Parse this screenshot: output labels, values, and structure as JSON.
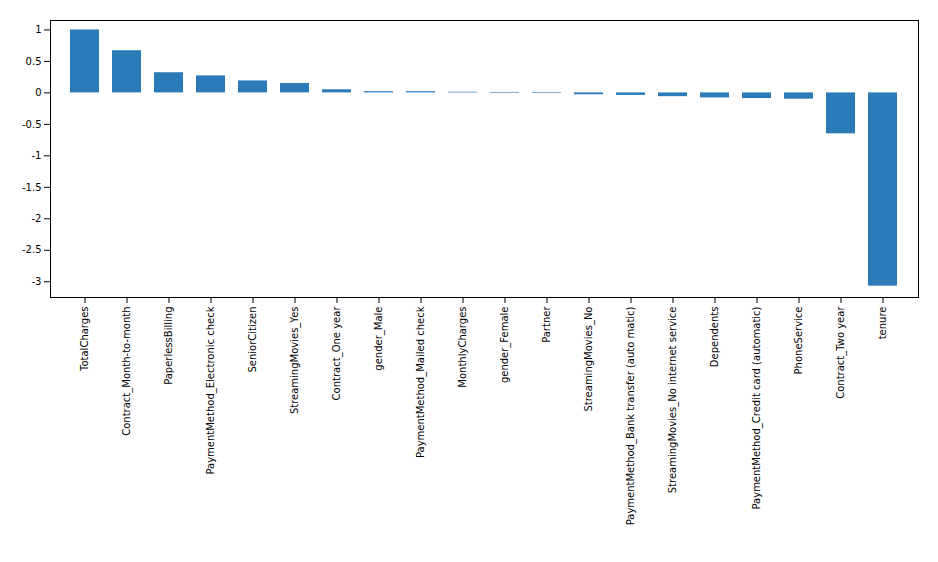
{
  "chart_data": {
    "type": "bar",
    "categories": [
      "TotalCharges",
      "Contract_Month-to-month",
      "PaperlessBilling",
      "PaymentMethod_Electronic check",
      "SeniorCitizen",
      "StreamingMovies_Yes",
      "Contract_One year",
      "gender_Male",
      "PaymentMethod_Mailed check",
      "MonthlyCharges",
      "gender_Female",
      "Partner",
      "StreamingMovies_No",
      "PaymentMethod_Bank transfer (auto matic)",
      "StreamingMovies_No internet service",
      "Dependents",
      "PaymentMethod_Credit card (automatic)",
      "PhoneService",
      "Contract_Two year",
      "tenure"
    ],
    "values": [
      1.0,
      0.67,
      0.32,
      0.27,
      0.19,
      0.15,
      0.05,
      0.02,
      0.02,
      0.01,
      -0.01,
      -0.01,
      -0.03,
      -0.04,
      -0.06,
      -0.08,
      -0.09,
      -0.1,
      -0.65,
      -3.07
    ],
    "color": "#2b7bb9",
    "ylim": [
      -3.25,
      1.15
    ],
    "yticks": [
      -3,
      -2.5,
      -2,
      -1.5,
      -1,
      -0.5,
      0,
      0.5,
      1
    ],
    "grid": false
  }
}
